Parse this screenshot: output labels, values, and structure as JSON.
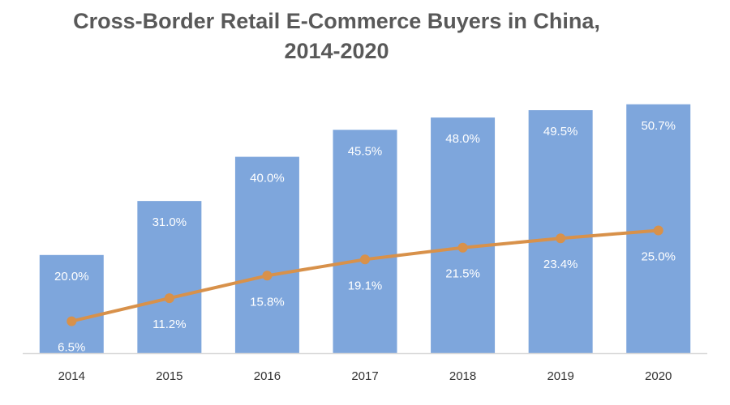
{
  "chart_data": {
    "type": "bar",
    "title": "Cross-Border Retail E-Commerce Buyers in China,",
    "title_line2": "2014-2020",
    "categories": [
      "2014",
      "2015",
      "2016",
      "2017",
      "2018",
      "2019",
      "2020"
    ],
    "series": [
      {
        "type": "bar",
        "values": [
          20.0,
          31.0,
          40.0,
          45.5,
          48.0,
          49.5,
          50.7
        ],
        "labels": [
          "20.0%",
          "31.0%",
          "40.0%",
          "45.5%",
          "48.0%",
          "49.5%",
          "50.7%"
        ],
        "color": "#7EA6DC"
      },
      {
        "type": "line",
        "values": [
          6.5,
          11.2,
          15.8,
          19.1,
          21.5,
          23.4,
          25.0
        ],
        "labels": [
          "6.5%",
          "11.2%",
          "15.8%",
          "19.1%",
          "21.5%",
          "23.4%",
          "25.0%"
        ],
        "color": "#D8914A"
      }
    ],
    "ylim": [
      0,
      60
    ],
    "xlabel": "",
    "ylabel": "",
    "grid": false,
    "axis_color": "#D9D9D9"
  }
}
